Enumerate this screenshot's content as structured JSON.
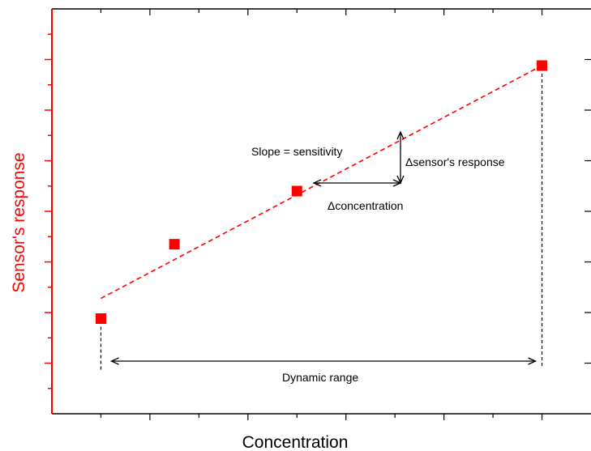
{
  "chart_data": {
    "type": "scatter",
    "xlabel": "Concentration",
    "ylabel": "Sensor's response",
    "xlim": [
      0,
      11
    ],
    "ylim": [
      0,
      8
    ],
    "grid": false,
    "tick_labels": false,
    "points": [
      {
        "x": 1.0,
        "y": 1.88
      },
      {
        "x": 2.5,
        "y": 3.35
      },
      {
        "x": 5.0,
        "y": 4.4
      },
      {
        "x": 10.0,
        "y": 6.88
      }
    ],
    "fit_line": {
      "x": [
        1.0,
        10.0
      ],
      "y": [
        2.28,
        6.88
      ],
      "style": "dashed"
    },
    "annotations": {
      "slope": "Slope = sensitivity",
      "delta_response": "Δsensor's response",
      "delta_concentration": "Δconcentration",
      "dynamic_range": "Dynamic range"
    },
    "colors": {
      "accent": "#ff0000",
      "axis": "#000000"
    }
  }
}
